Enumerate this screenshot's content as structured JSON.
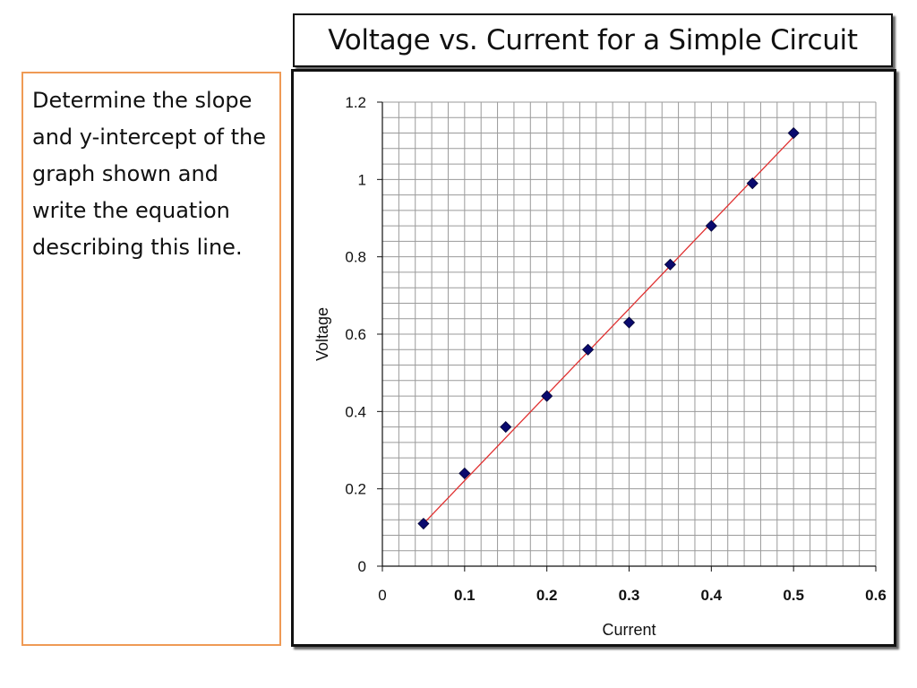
{
  "slide": {
    "title": "Voltage vs. Current for a Simple Circuit",
    "prompt": "Determine the slope and y-intercept of the graph shown and write the equation describing this line."
  },
  "chart_data": {
    "type": "scatter",
    "xlabel": "Current",
    "ylabel": "Voltage",
    "xlim": [
      0,
      0.6
    ],
    "ylim": [
      0,
      1.2
    ],
    "x_ticks": [
      "0",
      "0.1",
      "0.2",
      "0.3",
      "0.4",
      "0.5",
      "0.6"
    ],
    "y_ticks": [
      "0",
      "0.2",
      "0.4",
      "0.6",
      "0.8",
      "1",
      "1.2"
    ],
    "grid": true,
    "series": [
      {
        "x": [
          0.05,
          0.1,
          0.15,
          0.2,
          0.25,
          0.3,
          0.35,
          0.4,
          0.45,
          0.5
        ],
        "y": [
          0.11,
          0.24,
          0.36,
          0.44,
          0.56,
          0.63,
          0.78,
          0.88,
          0.99,
          1.12
        ],
        "marker_color": "#0a0a6e"
      }
    ],
    "trendline": {
      "x": [
        0.05,
        0.5
      ],
      "y": [
        0.11,
        1.11
      ],
      "color": "#e03030"
    }
  }
}
